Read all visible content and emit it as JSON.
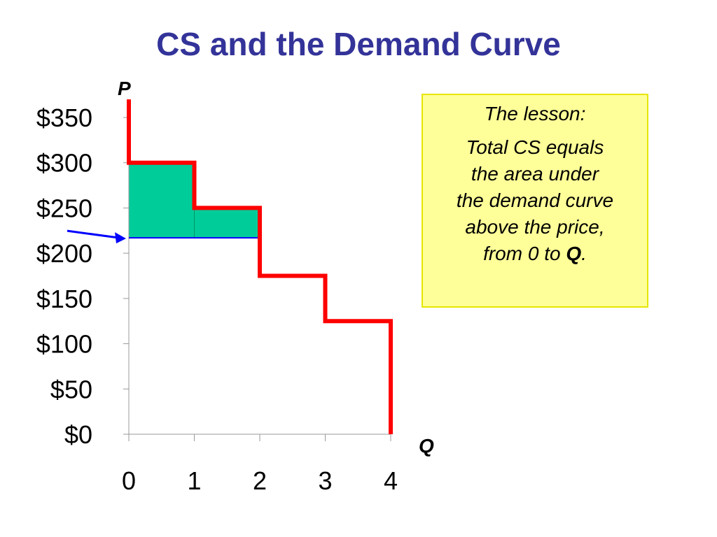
{
  "slide": {
    "title": "CS and the Demand Curve"
  },
  "lesson_box": {
    "heading": "The lesson:",
    "lines": [
      "Total CS equals",
      "the area under",
      "the demand curve",
      "above the price,"
    ],
    "last_line_prefix": "from 0 to ",
    "last_line_bold": "Q",
    "last_line_suffix": ".",
    "background_color": "#ffff99"
  },
  "chart_data": {
    "type": "step",
    "xlabel": "Q",
    "ylabel": "P",
    "x_ticks": [
      0,
      1,
      2,
      3,
      4
    ],
    "y_ticks": [
      0,
      50,
      100,
      150,
      200,
      250,
      300,
      350
    ],
    "y_tick_labels": [
      "$0",
      "$50",
      "$100",
      "$150",
      "$200",
      "$250",
      "$300",
      "$350"
    ],
    "xlim": [
      0,
      4
    ],
    "ylim": [
      0,
      350
    ],
    "demand_steps": [
      {
        "q_from": 0,
        "q_to": 1,
        "price": 300
      },
      {
        "q_from": 1,
        "q_to": 2,
        "price": 250
      },
      {
        "q_from": 2,
        "q_to": 3,
        "price": 175
      },
      {
        "q_from": 3,
        "q_to": 4,
        "price": 125
      }
    ],
    "demand_top_price": 370,
    "market_price": 217,
    "cs_quantity": 2,
    "demand_color": "#ff0000",
    "cs_fill_color": "#00cc99",
    "price_line_color": "#0000ff",
    "grid": false
  }
}
